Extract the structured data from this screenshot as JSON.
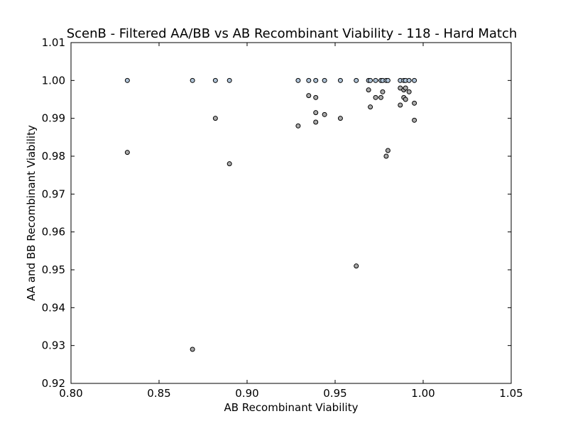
{
  "chart_data": {
    "type": "scatter",
    "title": "ScenB - Filtered AA/BB vs AB Recombinant Viability - 118 - Hard Match",
    "xlabel": "AB Recombinant Viability",
    "ylabel": "AA and BB Recombinant Viability",
    "xlim": [
      0.8,
      1.05
    ],
    "ylim": [
      0.92,
      1.01
    ],
    "xticks": [
      "0.80",
      "0.85",
      "0.90",
      "0.95",
      "1.00",
      "1.05"
    ],
    "yticks": [
      "0.92",
      "0.93",
      "0.94",
      "0.95",
      "0.96",
      "0.97",
      "0.98",
      "0.99",
      "1.00",
      "1.01"
    ],
    "grid": false,
    "colors": {
      "point_fill": "#b0c4d8",
      "point_fill_secondary": "#aaaaaa",
      "point_edge": "#000000"
    },
    "series": [
      {
        "points": [
          [
            0.832,
            1.0
          ],
          [
            0.832,
            0.981
          ],
          [
            0.869,
            1.0
          ],
          [
            0.869,
            0.929
          ],
          [
            0.882,
            1.0
          ],
          [
            0.882,
            0.99
          ],
          [
            0.89,
            1.0
          ],
          [
            0.89,
            0.978
          ],
          [
            0.929,
            1.0
          ],
          [
            0.929,
            0.988
          ],
          [
            0.935,
            1.0
          ],
          [
            0.935,
            0.996
          ],
          [
            0.939,
            1.0
          ],
          [
            0.939,
            0.9955
          ],
          [
            0.939,
            0.9915
          ],
          [
            0.939,
            0.989
          ],
          [
            0.944,
            1.0
          ],
          [
            0.944,
            0.991
          ],
          [
            0.953,
            1.0
          ],
          [
            0.953,
            0.99
          ],
          [
            0.962,
            1.0
          ],
          [
            0.962,
            0.951
          ],
          [
            0.969,
            1.0
          ],
          [
            0.969,
            0.9975
          ],
          [
            0.97,
            1.0
          ],
          [
            0.97,
            0.993
          ],
          [
            0.973,
            1.0
          ],
          [
            0.973,
            0.9955
          ],
          [
            0.976,
            1.0
          ],
          [
            0.976,
            0.9955
          ],
          [
            0.977,
            1.0
          ],
          [
            0.977,
            0.997
          ],
          [
            0.979,
            1.0
          ],
          [
            0.979,
            0.98
          ],
          [
            0.98,
            1.0
          ],
          [
            0.98,
            0.9815
          ],
          [
            0.987,
            1.0
          ],
          [
            0.987,
            0.998
          ],
          [
            0.987,
            0.9935
          ],
          [
            0.989,
            1.0
          ],
          [
            0.989,
            0.9975
          ],
          [
            0.989,
            0.9955
          ],
          [
            0.99,
            1.0
          ],
          [
            0.99,
            0.998
          ],
          [
            0.99,
            0.995
          ],
          [
            0.992,
            1.0
          ],
          [
            0.992,
            0.997
          ],
          [
            0.995,
            1.0
          ],
          [
            0.995,
            0.994
          ],
          [
            0.995,
            0.9895
          ]
        ]
      }
    ]
  }
}
